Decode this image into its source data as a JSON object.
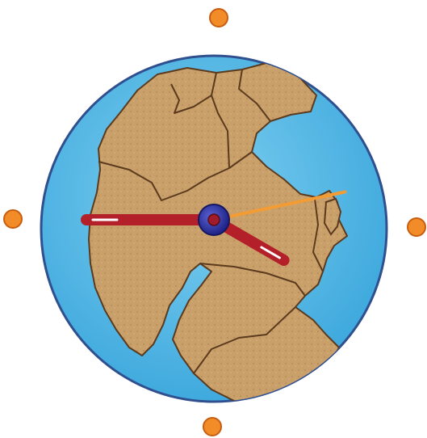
{
  "clock": {
    "face_description": "pangaea-world-map",
    "hour_markers": [
      "top",
      "right",
      "bottom",
      "left"
    ],
    "colors": {
      "ocean": "#4fb6e3",
      "ocean_rim": "#2f4f8f",
      "land": "#c9a06a",
      "land_outline": "#5b3a1e",
      "hand": "#b3202a",
      "hand_highlight": "#ffffff",
      "second_hand": "#f39c34",
      "hub_outer": "#2b2f9a",
      "hub_inner": "#a01c2a",
      "marker": "#f28c28"
    },
    "hands": {
      "hour_hand": {
        "clock_position_hours": 9.0
      },
      "minute_hand": {
        "clock_position_hours": 4.0
      },
      "second_hand": {
        "clock_position_hours": 2.6
      }
    }
  }
}
